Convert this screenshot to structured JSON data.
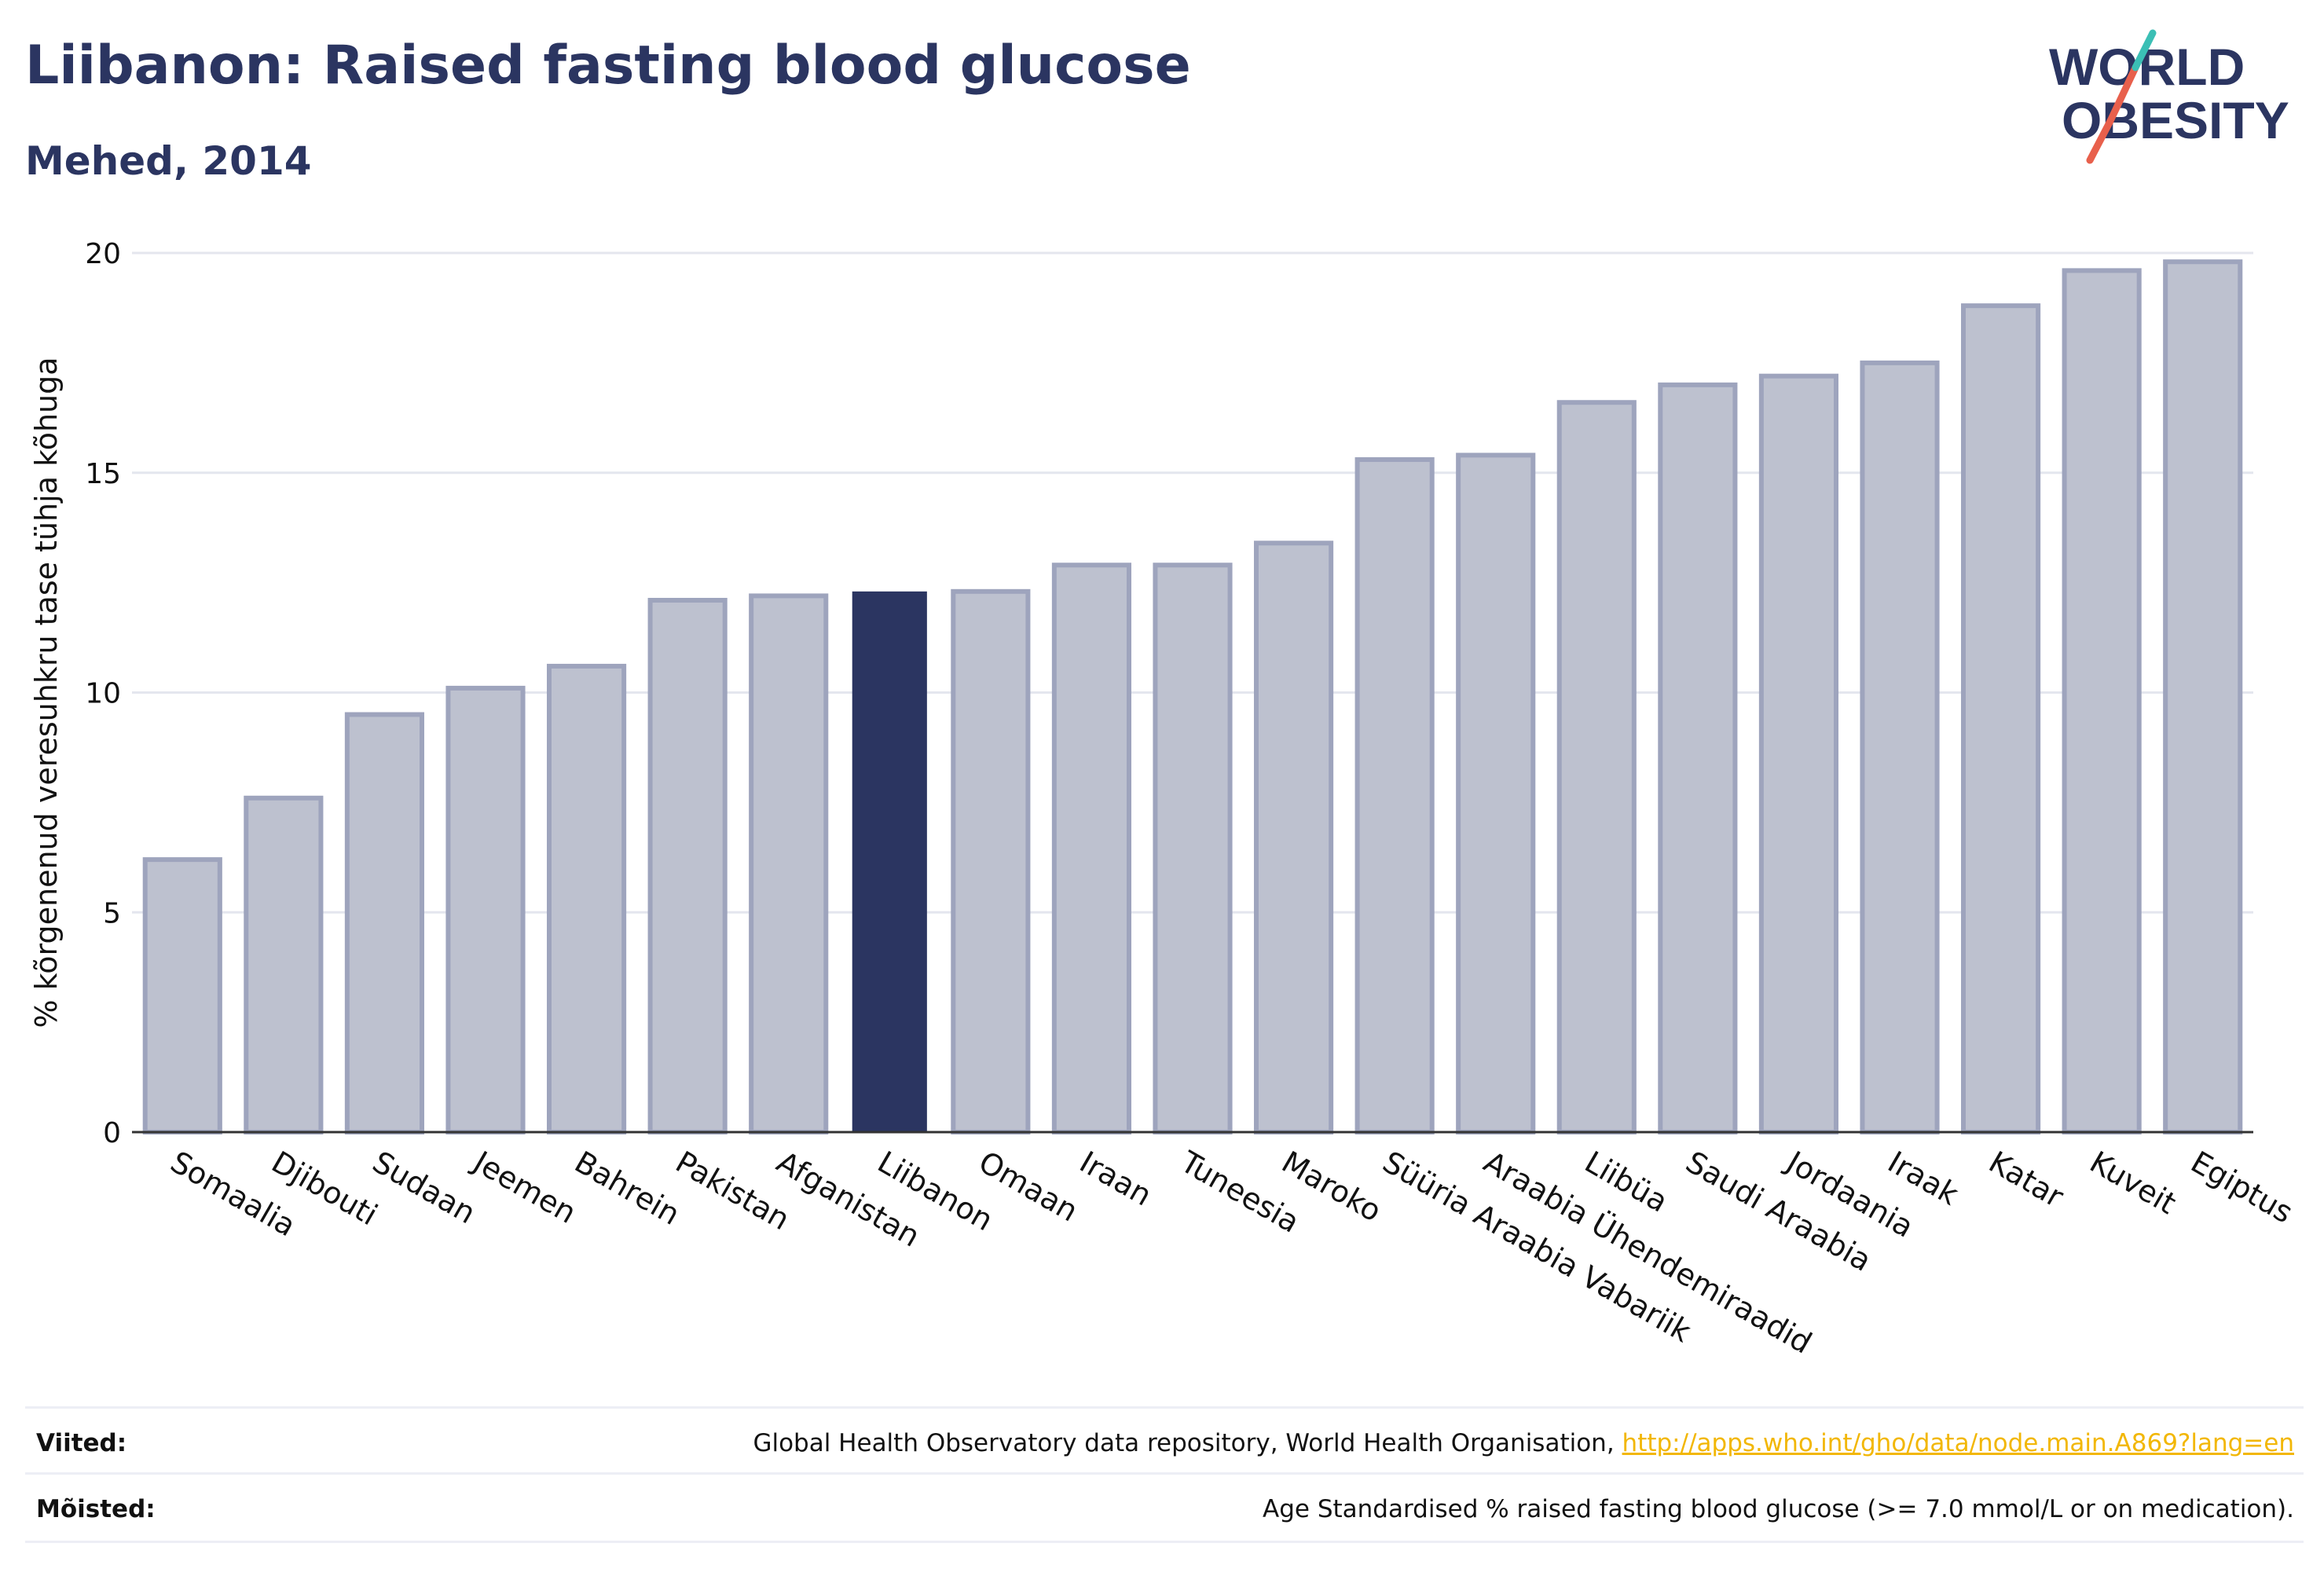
{
  "header": {
    "title": "Liibanon: Raised fasting blood glucose",
    "subtitle": "Mehed, 2014"
  },
  "logo": {
    "line1": "WORLD",
    "line2": "OBESITY"
  },
  "chart_data": {
    "type": "bar",
    "ylabel": "% kõrgenenud veresuhkru tase tühja kõhuga",
    "ylim": [
      0,
      20
    ],
    "yticks": [
      0,
      5,
      10,
      15,
      20
    ],
    "grid": true,
    "highlight": "Liibanon",
    "colors": {
      "bar": "#bdc1cf",
      "bar_edge": "#9ea4bd",
      "highlight": "#2b3561",
      "grid": "#e4e6ee",
      "axis": "#333333"
    },
    "categories": [
      "Somaalia",
      "Djibouti",
      "Sudaan",
      "Jeemen",
      "Bahrein",
      "Pakistan",
      "Afganistan",
      "Liibanon",
      "Omaan",
      "Iraan",
      "Tuneesia",
      "Maroko",
      "Süüria Araabia Vabariik",
      "Araabia Ühendemiraadid",
      "Liibüa",
      "Saudi Araabia",
      "Jordaania",
      "Iraak",
      "Katar",
      "Kuveit",
      "Egiptus"
    ],
    "values": [
      6.2,
      7.6,
      9.5,
      10.1,
      10.6,
      12.1,
      12.2,
      12.3,
      12.3,
      12.9,
      12.9,
      13.4,
      15.3,
      15.4,
      16.6,
      17.0,
      17.2,
      17.5,
      18.8,
      19.6,
      19.8
    ]
  },
  "footer": {
    "sources_label": "Viited:",
    "sources_text": "Global Health Observatory data repository, World Health Organisation, ",
    "sources_link": "http://apps.who.int/gho/data/node.main.A869?lang=en",
    "definitions_label": "Mõisted:",
    "definitions_text": "Age Standardised % raised fasting blood glucose (>= 7.0 mmol/L or on medication)."
  }
}
